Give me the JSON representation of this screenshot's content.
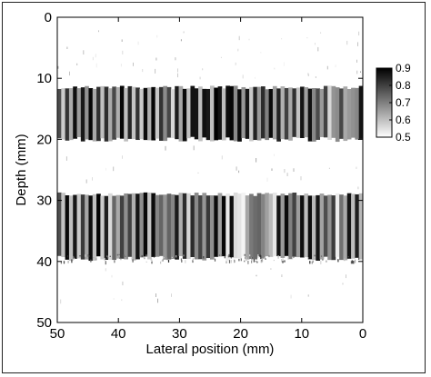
{
  "chart_data": {
    "type": "heatmap",
    "xlabel": "Lateral position (mm)",
    "ylabel": "Depth (mm)",
    "xlim": [
      50,
      0
    ],
    "ylim": [
      0,
      50
    ],
    "x_reversed": true,
    "y_reversed": true,
    "x_ticks": [
      50,
      40,
      30,
      20,
      10,
      0
    ],
    "y_ticks": [
      0,
      10,
      20,
      30,
      40,
      50
    ],
    "x_tick_labels": [
      "50",
      "40",
      "30",
      "20",
      "10",
      "0"
    ],
    "y_tick_labels": [
      "0",
      "10",
      "20",
      "30",
      "40",
      "50"
    ],
    "colorbar": {
      "range": [
        0.5,
        0.9
      ],
      "ticks": [
        0.9,
        0.8,
        0.7,
        0.6,
        0.5
      ],
      "tick_labels": [
        "0.9",
        "0.8",
        "0.7",
        "0.6",
        "0.5"
      ],
      "colormap": "gray (white = 0.5, black = 0.9)",
      "placement": "right"
    },
    "regions": [
      {
        "name": "upper layer",
        "depth_range_mm": [
          11.5,
          20
        ],
        "lateral_range_mm": [
          50,
          0
        ],
        "value_range": [
          0.55,
          0.9
        ]
      },
      {
        "name": "lower layer",
        "depth_range_mm": [
          29,
          39.5
        ],
        "lateral_range_mm": [
          50,
          0
        ],
        "value_range": [
          0.5,
          0.9
        ]
      }
    ],
    "background_value": 0.5
  }
}
